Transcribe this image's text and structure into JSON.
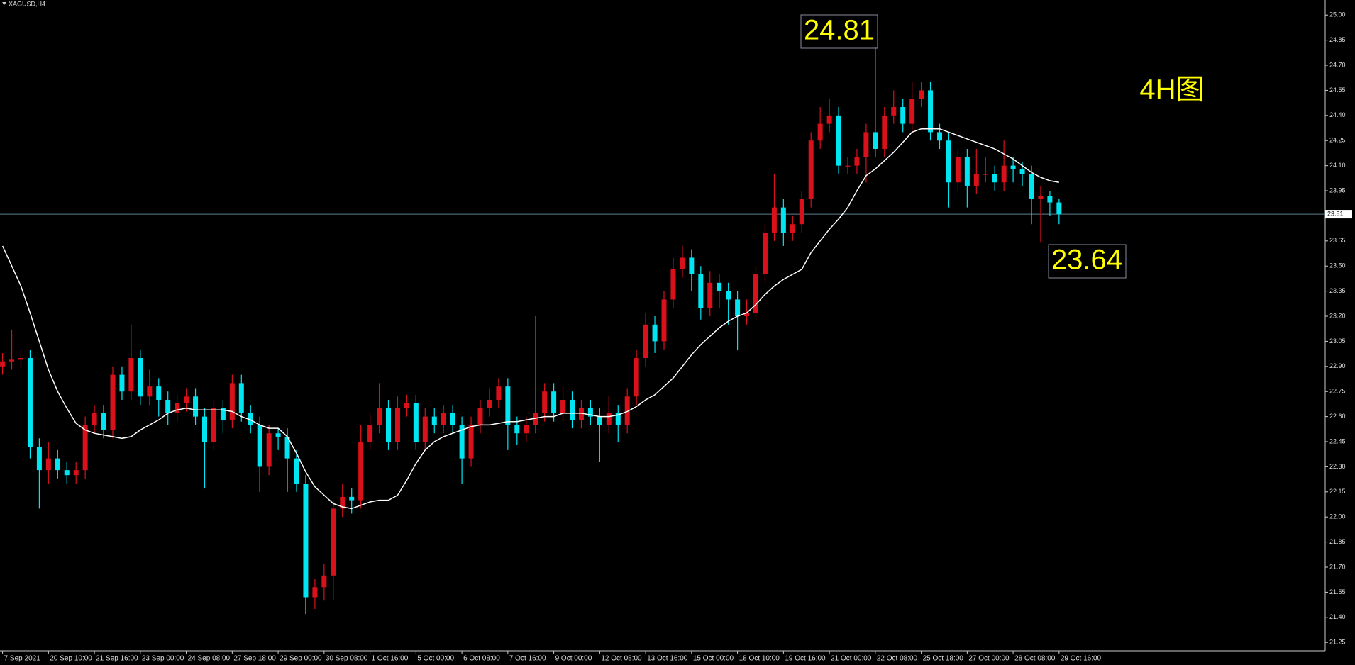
{
  "chart_data": {
    "type": "candlestick",
    "title": "XAGUSD,H4",
    "categories": [
      "7 Sep 2021",
      null,
      null,
      null,
      null,
      "20 Sep 10:00",
      null,
      null,
      null,
      null,
      "21 Sep 16:00",
      null,
      null,
      null,
      null,
      "23 Sep 00:00",
      null,
      null,
      null,
      null,
      "24 Sep 08:00",
      null,
      null,
      null,
      null,
      "27 Sep 18:00",
      null,
      null,
      null,
      null,
      "29 Sep 00:00",
      null,
      null,
      null,
      null,
      "30 Sep 08:00",
      null,
      null,
      null,
      null,
      "1 Oct 16:00",
      null,
      null,
      null,
      null,
      "5 Oct 00:00",
      null,
      null,
      null,
      null,
      "6 Oct 08:00",
      null,
      null,
      null,
      null,
      "7 Oct 16:00",
      null,
      null,
      null,
      null,
      "9 Oct 00:00",
      null,
      null,
      null,
      null,
      "12 Oct 08:00",
      null,
      null,
      null,
      null,
      "13 Oct 16:00",
      null,
      null,
      null,
      null,
      "15 Oct 00:00",
      null,
      null,
      null,
      null,
      "18 Oct 10:00",
      null,
      null,
      null,
      null,
      "19 Oct 16:00",
      null,
      null,
      null,
      null,
      "21 Oct 00:00",
      null,
      null,
      null,
      null,
      "22 Oct 08:00",
      null,
      null,
      null,
      null,
      "25 Oct 18:00",
      null,
      null,
      null,
      null,
      "27 Oct 00:00",
      null,
      null,
      null,
      null,
      "28 Oct 08:00",
      null,
      null,
      null,
      null,
      "29 Oct 16:00"
    ],
    "open": [
      22.9,
      22.93,
      22.94,
      22.95,
      22.42,
      22.28,
      22.35,
      22.28,
      22.25,
      22.28,
      22.55,
      22.62,
      22.52,
      22.85,
      22.75,
      22.95,
      22.72,
      22.78,
      22.7,
      22.62,
      22.68,
      22.72,
      22.6,
      22.45,
      22.65,
      22.58,
      22.8,
      22.62,
      22.55,
      22.3,
      22.5,
      22.48,
      22.35,
      22.2,
      21.52,
      21.58,
      21.65,
      22.05,
      22.12,
      22.1,
      22.45,
      22.55,
      22.65,
      22.45,
      22.65,
      22.68,
      22.45,
      22.6,
      22.55,
      22.62,
      22.55,
      22.35,
      22.55,
      22.65,
      22.7,
      22.78,
      22.55,
      22.5,
      22.55,
      22.62,
      22.75,
      22.62,
      22.7,
      22.58,
      22.65,
      22.6,
      22.55,
      22.62,
      22.55,
      22.72,
      22.95,
      23.15,
      23.05,
      23.3,
      23.48,
      23.55,
      23.45,
      23.25,
      23.4,
      23.35,
      23.3,
      23.2,
      23.22,
      23.45,
      23.7,
      23.85,
      23.7,
      23.75,
      23.9,
      24.25,
      24.35,
      24.4,
      24.1,
      24.1,
      24.15,
      24.3,
      24.2,
      24.4,
      24.45,
      24.35,
      24.5,
      24.55,
      24.3,
      24.25,
      24.0,
      24.15,
      23.98,
      24.05,
      24.05,
      24.0,
      24.1,
      24.08,
      24.05,
      23.9,
      23.92,
      23.88
    ],
    "high": [
      22.98,
      23.12,
      23.0,
      23.0,
      22.47,
      22.45,
      22.4,
      22.33,
      22.33,
      22.6,
      22.67,
      22.67,
      22.9,
      22.9,
      23.15,
      23.0,
      22.88,
      22.83,
      22.75,
      22.73,
      22.77,
      22.77,
      22.65,
      22.7,
      22.7,
      22.85,
      22.85,
      22.67,
      22.6,
      22.55,
      22.53,
      22.53,
      22.4,
      22.25,
      21.63,
      21.72,
      22.1,
      22.2,
      22.17,
      22.55,
      22.62,
      22.8,
      22.7,
      22.72,
      22.73,
      22.73,
      22.65,
      22.65,
      22.67,
      22.67,
      22.6,
      22.6,
      22.7,
      22.77,
      22.83,
      22.83,
      22.6,
      22.6,
      23.2,
      22.8,
      22.8,
      22.78,
      22.75,
      22.7,
      22.7,
      22.65,
      22.72,
      22.67,
      22.77,
      23.0,
      23.22,
      23.2,
      23.35,
      23.55,
      23.62,
      23.6,
      23.5,
      23.47,
      23.45,
      23.4,
      23.35,
      23.3,
      23.5,
      23.75,
      24.05,
      23.9,
      23.8,
      23.95,
      24.3,
      24.45,
      24.5,
      24.45,
      24.15,
      24.2,
      24.35,
      24.81,
      24.45,
      24.55,
      24.5,
      24.6,
      24.6,
      24.6,
      24.35,
      24.3,
      24.2,
      24.2,
      24.2,
      24.15,
      24.1,
      24.25,
      24.15,
      24.12,
      24.1,
      23.98,
      23.95,
      23.9
    ],
    "low": [
      22.85,
      22.88,
      22.89,
      22.35,
      22.05,
      22.2,
      22.23,
      22.2,
      22.2,
      22.23,
      22.5,
      22.47,
      22.47,
      22.7,
      22.7,
      22.67,
      22.67,
      22.6,
      22.55,
      22.57,
      22.63,
      22.55,
      22.17,
      22.4,
      22.5,
      22.53,
      22.57,
      22.5,
      22.15,
      22.25,
      22.4,
      22.15,
      22.15,
      21.42,
      21.45,
      21.5,
      21.5,
      22.0,
      22.02,
      22.05,
      22.4,
      22.5,
      22.4,
      22.4,
      22.6,
      22.4,
      22.4,
      22.5,
      22.5,
      22.5,
      22.2,
      22.3,
      22.5,
      22.6,
      22.65,
      22.4,
      22.43,
      22.45,
      22.5,
      22.57,
      22.57,
      22.57,
      22.53,
      22.53,
      22.55,
      22.33,
      22.5,
      22.45,
      22.5,
      22.67,
      22.9,
      22.98,
      23.0,
      23.25,
      23.43,
      23.35,
      23.18,
      23.2,
      23.25,
      23.15,
      23.0,
      23.15,
      23.18,
      23.4,
      23.65,
      23.62,
      23.65,
      23.7,
      23.85,
      24.2,
      24.3,
      24.05,
      24.05,
      24.05,
      24.0,
      24.15,
      24.15,
      24.35,
      24.3,
      24.3,
      24.45,
      24.25,
      24.2,
      23.85,
      23.95,
      23.85,
      23.93,
      24.0,
      23.95,
      23.95,
      24.0,
      23.98,
      23.75,
      23.64,
      23.8,
      23.75
    ],
    "close": [
      22.93,
      22.94,
      22.95,
      22.42,
      22.28,
      22.35,
      22.28,
      22.25,
      22.28,
      22.55,
      22.62,
      22.52,
      22.85,
      22.75,
      22.95,
      22.72,
      22.78,
      22.7,
      22.62,
      22.68,
      22.72,
      22.6,
      22.45,
      22.65,
      22.58,
      22.8,
      22.62,
      22.55,
      22.3,
      22.5,
      22.48,
      22.35,
      22.2,
      21.52,
      21.58,
      21.65,
      22.05,
      22.12,
      22.1,
      22.45,
      22.55,
      22.65,
      22.45,
      22.65,
      22.68,
      22.45,
      22.6,
      22.55,
      22.62,
      22.55,
      22.35,
      22.55,
      22.65,
      22.7,
      22.78,
      22.55,
      22.5,
      22.55,
      22.62,
      22.75,
      22.62,
      22.7,
      22.58,
      22.65,
      22.6,
      22.55,
      22.62,
      22.55,
      22.72,
      22.95,
      23.15,
      23.05,
      23.3,
      23.48,
      23.55,
      23.45,
      23.25,
      23.4,
      23.35,
      23.3,
      23.2,
      23.22,
      23.45,
      23.7,
      23.85,
      23.7,
      23.75,
      23.9,
      24.25,
      24.35,
      24.4,
      24.1,
      24.1,
      24.15,
      24.3,
      24.2,
      24.4,
      24.45,
      24.35,
      24.5,
      24.55,
      24.3,
      24.25,
      24.0,
      24.15,
      23.98,
      24.05,
      24.05,
      24.0,
      24.1,
      24.08,
      24.05,
      23.9,
      23.92,
      23.88,
      23.81
    ],
    "up_color": "#d8111b",
    "down_color": "#00e5f2",
    "series": [
      {
        "color": "#ffffff",
        "values": [
          23.62,
          23.5,
          23.38,
          23.22,
          23.05,
          22.88,
          22.75,
          22.65,
          22.56,
          22.52,
          22.5,
          22.49,
          22.48,
          22.47,
          22.48,
          22.52,
          22.55,
          22.58,
          22.62,
          22.64,
          22.65,
          22.64,
          22.64,
          22.64,
          22.64,
          22.63,
          22.6,
          22.58,
          22.55,
          22.53,
          22.53,
          22.48,
          22.38,
          22.27,
          22.18,
          22.13,
          22.08,
          22.06,
          22.05,
          22.07,
          22.09,
          22.1,
          22.1,
          22.13,
          22.22,
          22.32,
          22.4,
          22.45,
          22.48,
          22.5,
          22.52,
          22.54,
          22.55,
          22.55,
          22.56,
          22.57,
          22.57,
          22.58,
          22.59,
          22.6,
          22.6,
          22.62,
          22.62,
          22.62,
          22.61,
          22.6,
          22.6,
          22.61,
          22.63,
          22.66,
          22.7,
          22.73,
          22.78,
          22.83,
          22.9,
          22.97,
          23.03,
          23.08,
          23.13,
          23.17,
          23.2,
          23.22,
          23.27,
          23.33,
          23.38,
          23.42,
          23.45,
          23.48,
          23.58,
          23.65,
          23.72,
          23.78,
          23.85,
          23.95,
          24.04,
          24.08,
          24.13,
          24.18,
          24.24,
          24.3,
          24.32,
          24.32,
          24.32,
          24.3,
          24.28,
          24.26,
          24.24,
          24.22,
          24.2,
          24.17,
          24.14,
          24.1,
          24.06,
          24.03,
          24.01,
          24.0
        ]
      }
    ],
    "current_price": {
      "value": 23.81,
      "label": "23.81",
      "color": "#5b7f91"
    },
    "ylim": [
      21.2,
      25.09
    ],
    "yticks": [
      21.25,
      {
        "value": 21.4,
        "label": "21.40"
      },
      21.55,
      {
        "value": 21.7,
        "label": "21.70"
      },
      21.85,
      {
        "value": 22.0,
        "label": "22.00"
      },
      22.15,
      {
        "value": 22.3,
        "label": "22.30"
      },
      22.45,
      {
        "value": 22.6,
        "label": "22.60"
      },
      22.75,
      {
        "value": 22.9,
        "label": "22.90"
      },
      23.05,
      {
        "value": 23.2,
        "label": "23.20"
      },
      23.35,
      {
        "value": 23.5,
        "label": "23.50"
      },
      23.65,
      {
        "value": 23.8,
        "label": "23.80"
      },
      23.95,
      {
        "value": 24.1,
        "label": "24.10"
      },
      24.25,
      {
        "value": 24.4,
        "label": "24.40"
      },
      24.55,
      {
        "value": 24.7,
        "label": "24.70"
      },
      24.85,
      {
        "value": 25.0,
        "label": "25.00"
      }
    ],
    "annotations": [
      "24.81",
      "23.64",
      "4H图"
    ]
  }
}
